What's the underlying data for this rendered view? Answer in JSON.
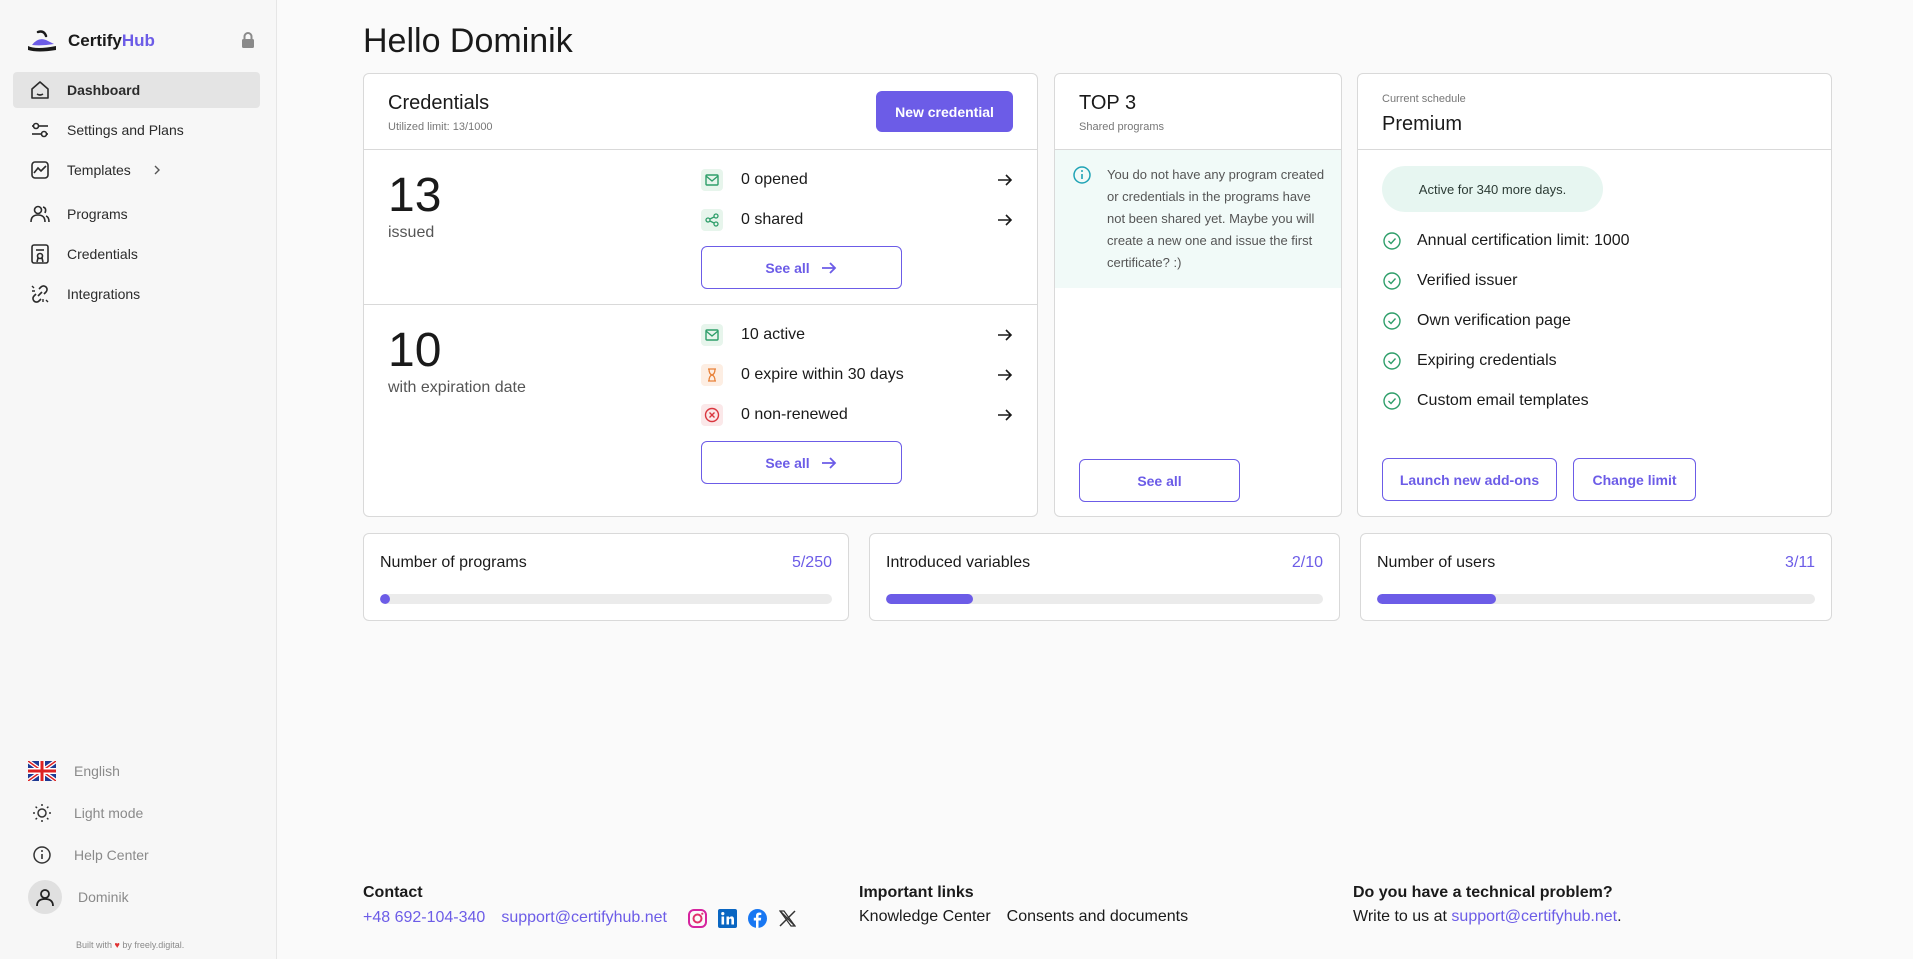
{
  "brand": {
    "name_part1": "Certify",
    "name_part2": "Hub"
  },
  "sidebar": {
    "items": [
      {
        "label": "Dashboard",
        "icon": "home-icon"
      },
      {
        "label": "Settings and Plans",
        "icon": "sliders-icon"
      },
      {
        "label": "Templates",
        "icon": "chart-icon"
      },
      {
        "label": "Programs",
        "icon": "users-icon"
      },
      {
        "label": "Credentials",
        "icon": "certificate-icon"
      },
      {
        "label": "Integrations",
        "icon": "link-icon"
      }
    ],
    "bottom": {
      "language": "English",
      "theme": "Light mode",
      "help": "Help Center",
      "user": "Dominik"
    },
    "built_with": {
      "prefix": "Built with",
      "heart": "♥",
      "suffix": "by freely.digital."
    }
  },
  "greeting": "Hello Dominik",
  "credentials": {
    "title": "Credentials",
    "subtitle": "Utilized limit: 13/1000",
    "new_button": "New credential",
    "issued": {
      "count": "13",
      "label": "issued",
      "rows": [
        {
          "label": "0 opened",
          "icon": "mail-icon"
        },
        {
          "label": "0 shared",
          "icon": "share-icon"
        }
      ],
      "see_all": "See all"
    },
    "expiration": {
      "count": "10",
      "label": "with expiration date",
      "rows": [
        {
          "label": "10 active",
          "icon": "mail-icon"
        },
        {
          "label": "0 expire within 30 days",
          "icon": "hourglass-icon"
        },
        {
          "label": "0 non-renewed",
          "icon": "x-circle-icon"
        }
      ],
      "see_all": "See all"
    }
  },
  "top3": {
    "title": "TOP 3",
    "subtitle": "Shared programs",
    "info": "You do not have any program created or credentials in the programs have not been shared yet. Maybe you will create a new one and issue the first certificate? :)",
    "see_all": "See all"
  },
  "schedule": {
    "label": "Current schedule",
    "plan": "Premium",
    "badge": "Active for 340 more days.",
    "features": [
      "Annual certification limit: 1000",
      "Verified issuer",
      "Own verification page",
      "Expiring credentials",
      "Custom email templates"
    ],
    "launch_button": "Launch new add-ons",
    "change_button": "Change limit"
  },
  "stats": [
    {
      "title": "Number of programs",
      "value": "5/250",
      "progress": 0.02
    },
    {
      "title": "Introduced variables",
      "value": "2/10",
      "progress": 0.2
    },
    {
      "title": "Number of users",
      "value": "3/11",
      "progress": 0.2727
    }
  ],
  "footer": {
    "contact_title": "Contact",
    "phone": "+48 692-104-340",
    "email": "support@certifyhub.net",
    "socials": [
      "instagram-icon",
      "linkedin-icon",
      "facebook-icon",
      "x-icon"
    ],
    "links_title": "Important links",
    "links": [
      "Knowledge Center",
      "Consents and documents"
    ],
    "tech_title": "Do you have a technical problem?",
    "tech_prefix": "Write to us at",
    "tech_email": "support@certifyhub.net",
    "tech_suffix": "."
  },
  "colors": {
    "accent": "#6c5ce7",
    "success": "#2e9e6a",
    "warning": "#e8823a",
    "danger": "#d9363e",
    "info": "#1fa3b5"
  }
}
